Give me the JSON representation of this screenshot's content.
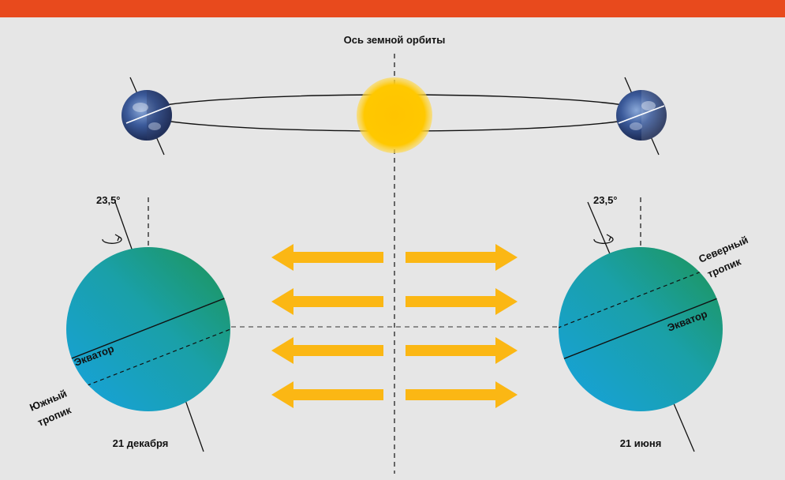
{
  "header": {
    "color": "#e84a1d"
  },
  "colors": {
    "background": "#e6e6e6",
    "sun": "#ffc800",
    "arrow": "#fbb714",
    "globe_a": "#1a9fd6",
    "globe_b": "#1b9a5a",
    "line": "#111111"
  },
  "title": "Ось земной орбиты",
  "tilt_angle": "23,5°",
  "left_globe": {
    "date": "21 декабря",
    "equator": "Экватор",
    "tropic_line1": "Южный",
    "tropic_line2": "тропик"
  },
  "right_globe": {
    "date": "21 июня",
    "equator": "Экватор",
    "tropic_line1": "Северный",
    "tropic_line2": "тропик"
  },
  "icons": [
    "sun-icon",
    "earth-icon",
    "rotation-arrow-icon",
    "sunlight-arrow-icon"
  ]
}
